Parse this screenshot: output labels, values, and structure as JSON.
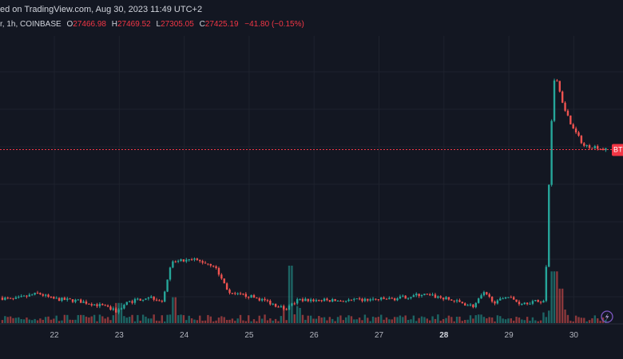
{
  "header": {
    "published": "ed on TradingView.com, Aug 30, 2023 11:49 UTC+2",
    "symbol_line": "r, 1h, COINBASE",
    "ohlc": [
      {
        "label": "O",
        "value": "27466.98"
      },
      {
        "label": "H",
        "value": "27469.52"
      },
      {
        "label": "L",
        "value": "27305.05"
      },
      {
        "label": "C",
        "value": "27425.19"
      },
      {
        "label": "",
        "value": "−41.80 (−0.15%)"
      }
    ]
  },
  "price_tag": "BT",
  "colors": {
    "background": "#131722",
    "up": "#26a69a",
    "down": "#ef5350",
    "grid": "#1e222d",
    "last_price_line": "#f23645"
  },
  "chart_data": {
    "type": "candlestick",
    "timeframe": "1h",
    "x_ticks": [
      {
        "label": "22",
        "bold": false
      },
      {
        "label": "23",
        "bold": false
      },
      {
        "label": "24",
        "bold": false
      },
      {
        "label": "25",
        "bold": false
      },
      {
        "label": "26",
        "bold": false
      },
      {
        "label": "27",
        "bold": false
      },
      {
        "label": "28",
        "bold": true
      },
      {
        "label": "29",
        "bold": false
      },
      {
        "label": "30",
        "bold": false
      }
    ],
    "ylim": [
      25850,
      28400
    ],
    "last_price": 27425.19,
    "anchors": [
      {
        "day": 21.0,
        "price": 26070
      },
      {
        "day": 21.4,
        "price": 26030
      },
      {
        "day": 21.8,
        "price": 26090
      },
      {
        "day": 22.0,
        "price": 26040
      },
      {
        "day": 22.4,
        "price": 26020
      },
      {
        "day": 22.8,
        "price": 25970
      },
      {
        "day": 23.0,
        "price": 25920
      },
      {
        "day": 23.15,
        "price": 26000
      },
      {
        "day": 23.5,
        "price": 26060
      },
      {
        "day": 23.7,
        "price": 26020
      },
      {
        "day": 23.85,
        "price": 26380
      },
      {
        "day": 24.2,
        "price": 26400
      },
      {
        "day": 24.5,
        "price": 26350
      },
      {
        "day": 24.75,
        "price": 26080
      },
      {
        "day": 25.0,
        "price": 26070
      },
      {
        "day": 25.3,
        "price": 26020
      },
      {
        "day": 25.6,
        "price": 25940
      },
      {
        "day": 25.8,
        "price": 26030
      },
      {
        "day": 26.5,
        "price": 26020
      },
      {
        "day": 27.3,
        "price": 26040
      },
      {
        "day": 27.7,
        "price": 26080
      },
      {
        "day": 28.0,
        "price": 26050
      },
      {
        "day": 28.5,
        "price": 25970
      },
      {
        "day": 28.65,
        "price": 26090
      },
      {
        "day": 28.85,
        "price": 26000
      },
      {
        "day": 29.0,
        "price": 26070
      },
      {
        "day": 29.2,
        "price": 26000
      },
      {
        "day": 29.6,
        "price": 26020
      },
      {
        "day": 29.68,
        "price": 27500
      },
      {
        "day": 29.75,
        "price": 28150
      },
      {
        "day": 29.85,
        "price": 27900
      },
      {
        "day": 30.0,
        "price": 27650
      },
      {
        "day": 30.2,
        "price": 27460
      },
      {
        "day": 30.4,
        "price": 27450
      },
      {
        "day": 30.5,
        "price": 27425
      }
    ],
    "volume_spikes": [
      {
        "day": 23.0,
        "height": 0.35
      },
      {
        "day": 23.85,
        "height": 0.45
      },
      {
        "day": 25.65,
        "height": 1.0
      },
      {
        "day": 29.7,
        "height": 0.9
      },
      {
        "day": 29.8,
        "height": 0.6
      }
    ]
  }
}
